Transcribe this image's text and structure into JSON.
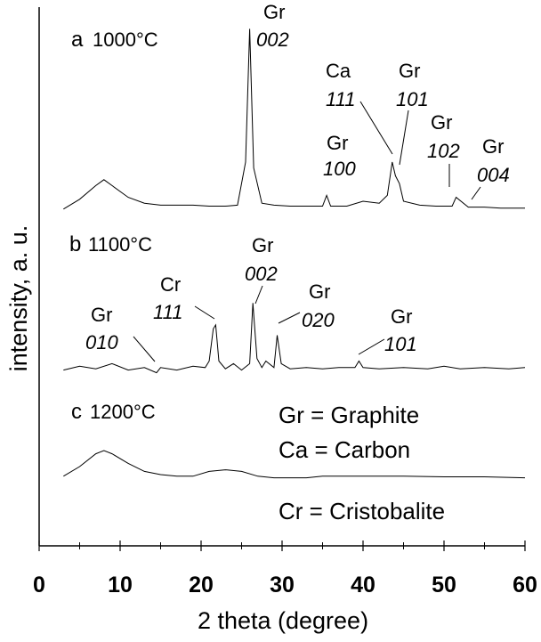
{
  "chart_data": {
    "type": "line",
    "xlabel": "2 theta (degree)",
    "ylabel": "intensity, a. u.",
    "xlim": [
      0,
      60
    ],
    "x_ticks": [
      "0",
      "10",
      "20",
      "30",
      "40",
      "50",
      "60"
    ],
    "series": [
      {
        "label": "a",
        "temperature": "1000°C",
        "x": [
          3,
          5,
          7,
          8,
          9,
          11,
          13,
          15,
          17,
          19,
          21,
          23,
          24.5,
          25.5,
          26.0,
          26.5,
          27.5,
          29,
          31,
          33,
          35,
          35.5,
          36,
          38,
          40,
          42,
          43,
          43.6,
          44.0,
          44.5,
          45,
          47,
          49,
          51,
          51.5,
          53,
          55,
          57,
          60
        ],
        "y": [
          1,
          6,
          13,
          16,
          13,
          7,
          4,
          3,
          3,
          3,
          2.5,
          2.5,
          3,
          25,
          93,
          22,
          4,
          3,
          2.5,
          2.5,
          2.5,
          8,
          2.5,
          2.5,
          5,
          4,
          8,
          25,
          18,
          14,
          5,
          3,
          2.5,
          2.5,
          7,
          2,
          2,
          1.5,
          1.5
        ],
        "peaks": [
          {
            "x": 26.2,
            "phase": "Gr",
            "index": "002"
          },
          {
            "x": 35.5,
            "phase": "Gr",
            "index": "100"
          },
          {
            "x": 43.6,
            "phase": "Ca",
            "index": "111"
          },
          {
            "x": 44.4,
            "phase": "Gr",
            "index": "101"
          },
          {
            "x": 51.5,
            "phase": "Gr",
            "index": "102"
          },
          {
            "x": 54.5,
            "phase": "Gr",
            "index": "004"
          }
        ]
      },
      {
        "label": "b",
        "temperature": "1100°C",
        "x": [
          3,
          5,
          7,
          9,
          11,
          13,
          14.5,
          15,
          17,
          19,
          20.5,
          21,
          21.5,
          21.8,
          22.2,
          23,
          24,
          25,
          26,
          26.4,
          26.9,
          27.5,
          28,
          29,
          29.4,
          29.9,
          31,
          33,
          35,
          37,
          39,
          39.5,
          40,
          42,
          45,
          48,
          50,
          52,
          55,
          58,
          60
        ],
        "y": [
          3,
          6,
          4,
          8,
          3,
          5,
          1,
          5,
          3,
          6,
          5,
          10,
          35,
          38,
          10,
          4,
          8,
          3,
          8,
          55,
          12,
          5,
          10,
          5,
          30,
          8,
          4,
          5,
          4,
          5,
          5,
          10,
          5,
          4,
          5,
          4,
          6,
          4,
          5,
          4,
          5
        ],
        "peaks": [
          {
            "x": 14.5,
            "phase": "Gr",
            "index": "010"
          },
          {
            "x": 21.8,
            "phase": "Cr",
            "index": "111"
          },
          {
            "x": 26.4,
            "phase": "Gr",
            "index": "002"
          },
          {
            "x": 29.4,
            "phase": "Gr",
            "index": "020"
          },
          {
            "x": 39.5,
            "phase": "Gr",
            "index": "101"
          }
        ]
      },
      {
        "label": "c",
        "temperature": "1200°C",
        "x": [
          3,
          5,
          7,
          8,
          9,
          11,
          13,
          15,
          17,
          19,
          21,
          23,
          25,
          27,
          29,
          31,
          33,
          35,
          40,
          45,
          50,
          55,
          60
        ],
        "y": [
          2,
          5,
          9,
          10,
          9,
          6,
          3.5,
          2.5,
          2,
          2,
          3.5,
          4,
          3.5,
          2,
          1.5,
          1.5,
          1.5,
          2,
          2,
          2,
          1.8,
          1.8,
          1.5
        ]
      }
    ],
    "legend": [
      "Gr = Graphite",
      "Ca = Carbon",
      "Cr = Cristobalite"
    ]
  }
}
